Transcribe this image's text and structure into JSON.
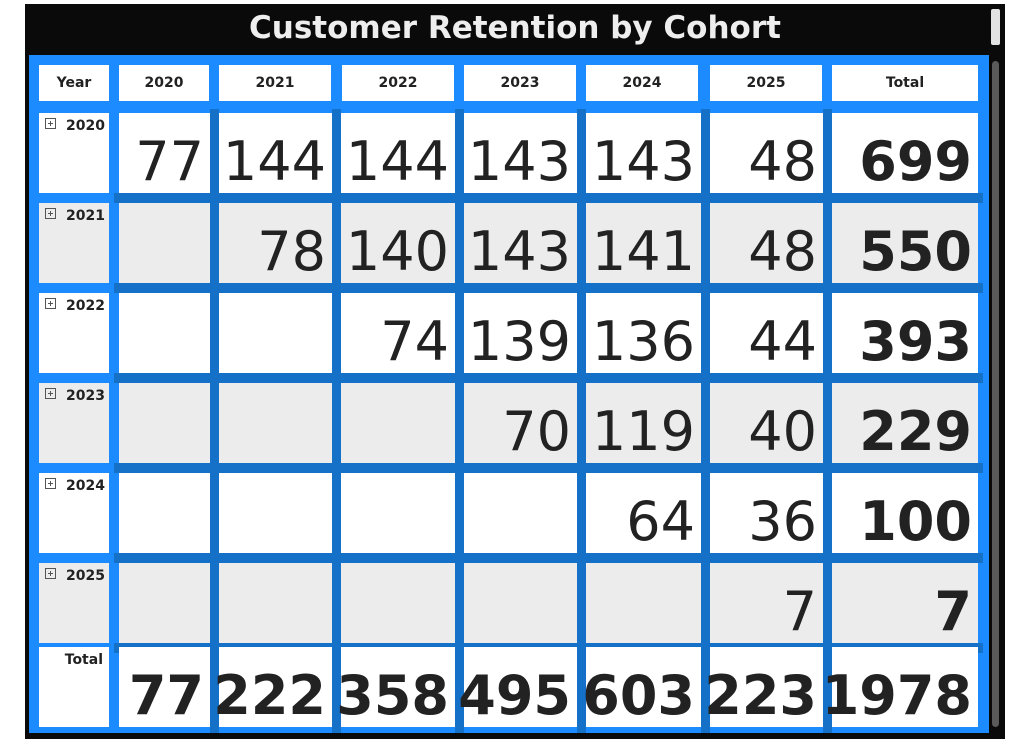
{
  "title": "Customer Retention by Cohort",
  "colors": {
    "background": "#0a0a0a",
    "grid_accent": "#1b8bff",
    "band": "#1570c8",
    "cell_white": "#ffffff",
    "cell_gray": "#ececec",
    "text": "#222222"
  },
  "header": {
    "year_label": "Year",
    "columns": [
      "2020",
      "2021",
      "2022",
      "2023",
      "2024",
      "2025"
    ],
    "total_label": "Total"
  },
  "rows": [
    {
      "year": "2020",
      "values": [
        "77",
        "144",
        "144",
        "143",
        "143",
        "48"
      ],
      "total": "699"
    },
    {
      "year": "2021",
      "values": [
        "",
        "78",
        "140",
        "143",
        "141",
        "48"
      ],
      "total": "550"
    },
    {
      "year": "2022",
      "values": [
        "",
        "",
        "74",
        "139",
        "136",
        "44"
      ],
      "total": "393"
    },
    {
      "year": "2023",
      "values": [
        "",
        "",
        "",
        "70",
        "119",
        "40"
      ],
      "total": "229"
    },
    {
      "year": "2024",
      "values": [
        "",
        "",
        "",
        "",
        "64",
        "36"
      ],
      "total": "100"
    },
    {
      "year": "2025",
      "values": [
        "",
        "",
        "",
        "",
        "",
        "7"
      ],
      "total": "7"
    }
  ],
  "totals": {
    "label": "Total",
    "values": [
      "77",
      "222",
      "358",
      "495",
      "603",
      "223"
    ],
    "grand_total": "1978"
  }
}
